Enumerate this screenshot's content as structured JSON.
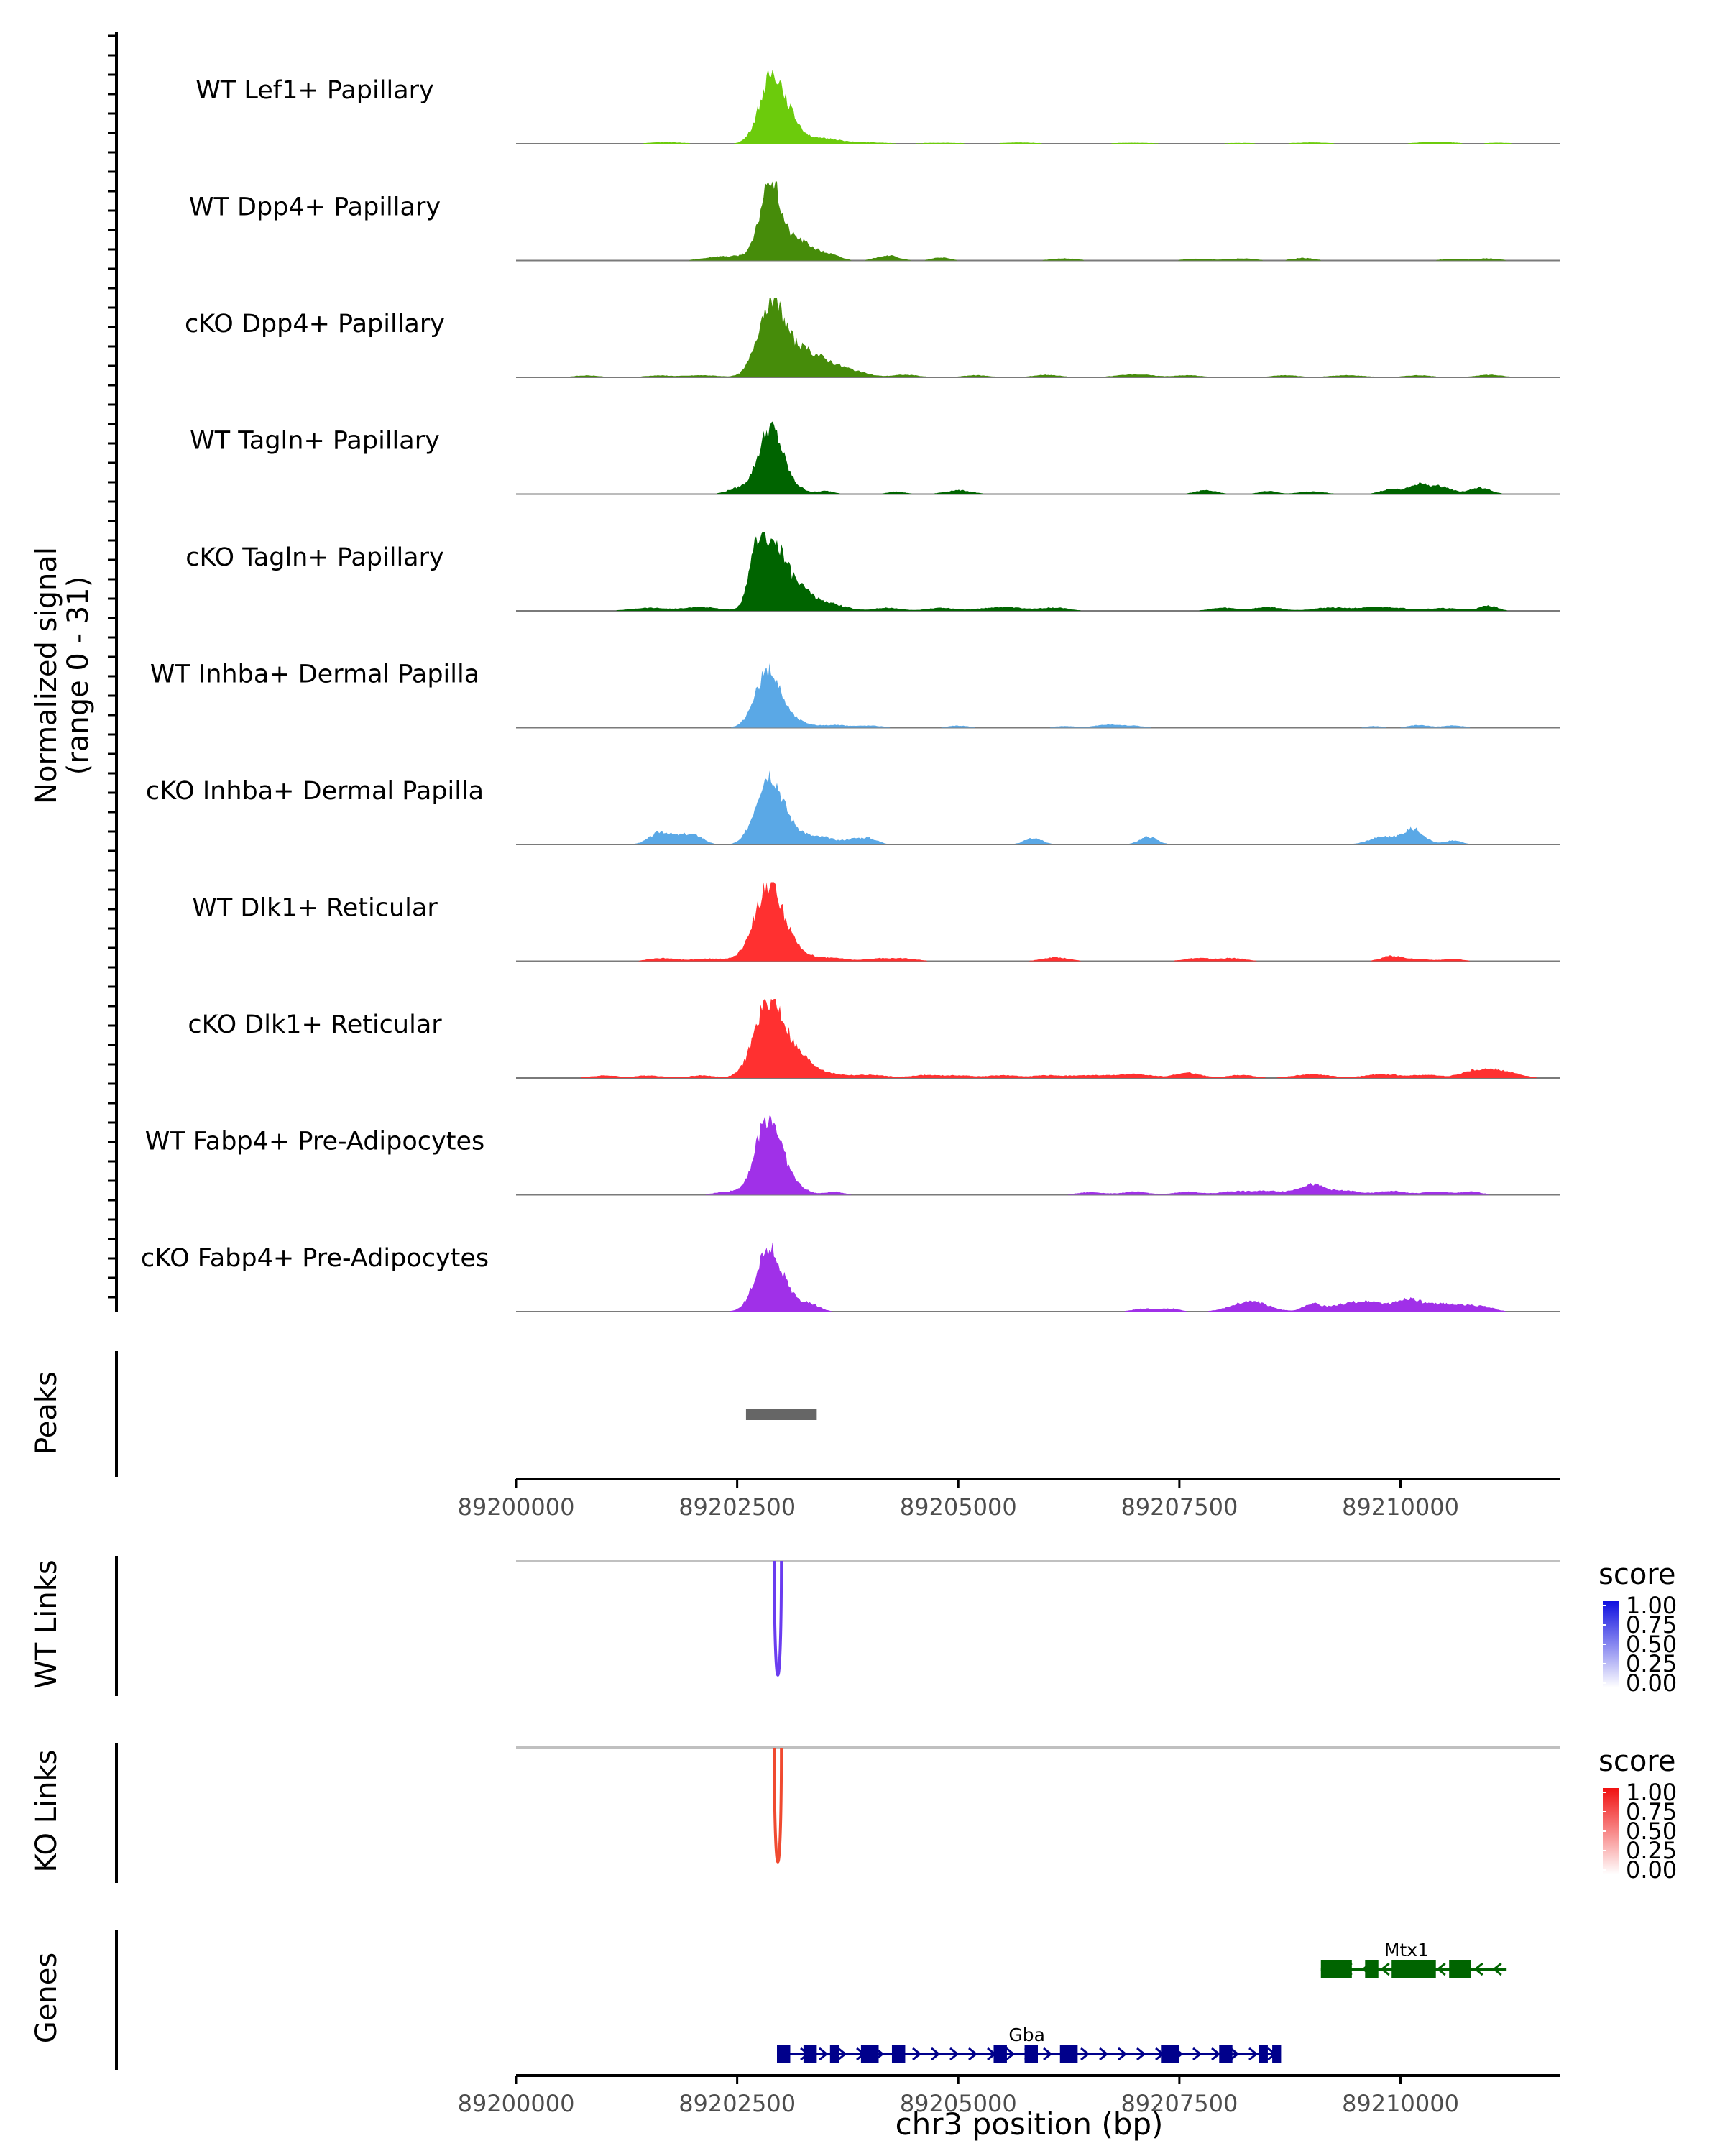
{
  "chart_data": {
    "type": "area",
    "title": "",
    "xlabel": "chr3 position (bp)",
    "ylabel": "Normalized signal",
    "ylabel2": "(range 0 - 31)",
    "xlim": [
      89200000,
      89211800
    ],
    "ylim": [
      0,
      31
    ],
    "x_ticks": [
      89200000,
      89202500,
      89205000,
      89207500,
      89210000
    ],
    "x_tick_labels": [
      "89200000",
      "89202500",
      "89205000",
      "89207500",
      "89210000"
    ],
    "coverage_tracks": [
      {
        "name": "WT Lef1+ Papillary",
        "color": "#6CCB0C",
        "peaks": [
          [
            89202900,
            27,
            140
          ],
          [
            89203150,
            5,
            120
          ],
          [
            89203500,
            2,
            180
          ],
          [
            89201700,
            0.6,
            200
          ],
          [
            89204000,
            0.5,
            200
          ],
          [
            89204800,
            0.4,
            250
          ],
          [
            89205700,
            0.5,
            200
          ],
          [
            89207000,
            0.4,
            250
          ],
          [
            89208200,
            0.3,
            250
          ],
          [
            89209000,
            0.5,
            200
          ],
          [
            89210400,
            0.8,
            200
          ],
          [
            89211100,
            0.4,
            150
          ]
        ]
      },
      {
        "name": "WT Dpp4+ Papillary",
        "color": "#468C0A",
        "peaks": [
          [
            89202870,
            24,
            100
          ],
          [
            89202950,
            9,
            220
          ],
          [
            89203250,
            4,
            150
          ],
          [
            89203550,
            2,
            120
          ],
          [
            89202300,
            1.5,
            180
          ],
          [
            89204200,
            2,
            120
          ],
          [
            89204800,
            1.2,
            100
          ],
          [
            89206200,
            0.8,
            150
          ],
          [
            89207700,
            0.7,
            150
          ],
          [
            89208200,
            0.8,
            150
          ],
          [
            89208900,
            1,
            120
          ],
          [
            89210600,
            0.6,
            150
          ],
          [
            89211000,
            0.8,
            120
          ]
        ]
      },
      {
        "name": "cKO Dpp4+ Papillary",
        "color": "#468C0A",
        "peaks": [
          [
            89202870,
            25,
            140
          ],
          [
            89203100,
            10,
            220
          ],
          [
            89203450,
            5,
            200
          ],
          [
            89203800,
            2,
            180
          ],
          [
            89200800,
            0.7,
            150
          ],
          [
            89201600,
            0.7,
            150
          ],
          [
            89202100,
            0.8,
            200
          ],
          [
            89204400,
            1,
            150
          ],
          [
            89205200,
            0.8,
            150
          ],
          [
            89206000,
            1,
            150
          ],
          [
            89207000,
            1.2,
            200
          ],
          [
            89207600,
            0.8,
            150
          ],
          [
            89208700,
            0.8,
            150
          ],
          [
            89209400,
            0.8,
            200
          ],
          [
            89210200,
            0.8,
            150
          ],
          [
            89211000,
            1,
            150
          ]
        ]
      },
      {
        "name": "WT Tagln+ Papillary",
        "color": "#006400",
        "peaks": [
          [
            89202880,
            26,
            140
          ],
          [
            89202500,
            2,
            120
          ],
          [
            89203200,
            1.5,
            100
          ],
          [
            89203500,
            1.2,
            100
          ],
          [
            89204300,
            1,
            100
          ],
          [
            89205000,
            1.5,
            150
          ],
          [
            89207800,
            1.5,
            120
          ],
          [
            89208500,
            1.2,
            100
          ],
          [
            89209000,
            1,
            150
          ],
          [
            89209900,
            2,
            120
          ],
          [
            89210200,
            3.5,
            100
          ],
          [
            89210450,
            3,
            130
          ],
          [
            89210900,
            2.5,
            120
          ]
        ]
      },
      {
        "name": "cKO Tagln+ Papillary",
        "color": "#006400",
        "peaks": [
          [
            89202750,
            28,
            100
          ],
          [
            89202950,
            18,
            100
          ],
          [
            89203150,
            10,
            150
          ],
          [
            89203500,
            3,
            200
          ],
          [
            89201500,
            1.2,
            200
          ],
          [
            89202100,
            1.5,
            200
          ],
          [
            89204200,
            1.2,
            150
          ],
          [
            89204800,
            1.2,
            150
          ],
          [
            89205500,
            1.5,
            250
          ],
          [
            89206100,
            1.2,
            150
          ],
          [
            89208000,
            1.2,
            150
          ],
          [
            89208500,
            1.5,
            150
          ],
          [
            89209200,
            1.2,
            200
          ],
          [
            89209800,
            1.5,
            250
          ],
          [
            89210500,
            1,
            200
          ],
          [
            89211000,
            2,
            100
          ]
        ]
      },
      {
        "name": "WT Inhba+ Dermal Papilla",
        "color": "#5AA8E6",
        "peaks": [
          [
            89202850,
            22,
            140
          ],
          [
            89203150,
            2.5,
            150
          ],
          [
            89203600,
            1,
            150
          ],
          [
            89204000,
            0.8,
            150
          ],
          [
            89205000,
            0.8,
            120
          ],
          [
            89206200,
            0.6,
            120
          ],
          [
            89206700,
            1.2,
            150
          ],
          [
            89207000,
            0.6,
            120
          ],
          [
            89209700,
            0.6,
            100
          ],
          [
            89210200,
            1,
            120
          ],
          [
            89210600,
            0.8,
            120
          ]
        ]
      },
      {
        "name": "cKO Inhba+ Dermal Papilla",
        "color": "#5AA8E6",
        "peaks": [
          [
            89202850,
            25,
            140
          ],
          [
            89203100,
            6,
            200
          ],
          [
            89201650,
            5,
            130
          ],
          [
            89201900,
            2.5,
            80
          ],
          [
            89202050,
            3,
            90
          ],
          [
            89203500,
            2,
            100
          ],
          [
            89203800,
            2,
            120
          ],
          [
            89204000,
            2,
            100
          ],
          [
            89205850,
            2.5,
            100
          ],
          [
            89207150,
            3,
            100
          ],
          [
            89209800,
            3,
            150
          ],
          [
            89210150,
            6,
            120
          ],
          [
            89210600,
            1.5,
            100
          ]
        ]
      },
      {
        "name": "WT Dlk1+ Reticular",
        "color": "#FF3030",
        "peaks": [
          [
            89202850,
            28,
            160
          ],
          [
            89203100,
            4,
            200
          ],
          [
            89201650,
            1.2,
            150
          ],
          [
            89202200,
            1,
            200
          ],
          [
            89203600,
            1.2,
            150
          ],
          [
            89204100,
            1,
            150
          ],
          [
            89204400,
            1,
            150
          ],
          [
            89206100,
            1.5,
            150
          ],
          [
            89207700,
            1.2,
            150
          ],
          [
            89208100,
            1.2,
            150
          ],
          [
            89209900,
            2,
            120
          ],
          [
            89210200,
            0.8,
            150
          ],
          [
            89210600,
            0.8,
            120
          ]
        ]
      },
      {
        "name": "cKO Dlk1+ Reticular",
        "color": "#FF3030",
        "peaks": [
          [
            89202850,
            26,
            160
          ],
          [
            89203050,
            8,
            200
          ],
          [
            89203300,
            3,
            150
          ],
          [
            89201000,
            1,
            150
          ],
          [
            89201500,
            1,
            150
          ],
          [
            89202100,
            1,
            150
          ],
          [
            89203600,
            1,
            150
          ],
          [
            89204000,
            1.2,
            200
          ],
          [
            89204600,
            1,
            150
          ],
          [
            89205000,
            1,
            200
          ],
          [
            89205500,
            1,
            150
          ],
          [
            89206000,
            1,
            200
          ],
          [
            89206500,
            1,
            200
          ],
          [
            89207000,
            1.5,
            200
          ],
          [
            89207600,
            2,
            150
          ],
          [
            89208200,
            1.2,
            150
          ],
          [
            89209000,
            1.5,
            200
          ],
          [
            89209800,
            1.5,
            200
          ],
          [
            89210300,
            1.2,
            150
          ],
          [
            89210800,
            2,
            150
          ],
          [
            89211100,
            3,
            200
          ]
        ]
      },
      {
        "name": "WT Fabp4+ Pre-Adipocytes",
        "color": "#A030E8",
        "peaks": [
          [
            89202850,
            30,
            140
          ],
          [
            89203100,
            4,
            150
          ],
          [
            89202400,
            1.2,
            150
          ],
          [
            89203600,
            1.2,
            100
          ],
          [
            89206500,
            1,
            150
          ],
          [
            89207000,
            1.2,
            150
          ],
          [
            89207600,
            1.2,
            150
          ],
          [
            89208100,
            1.2,
            150
          ],
          [
            89208500,
            1.5,
            200
          ],
          [
            89209000,
            4,
            150
          ],
          [
            89209400,
            1.5,
            150
          ],
          [
            89209900,
            1.5,
            150
          ],
          [
            89210400,
            1.2,
            150
          ],
          [
            89210800,
            1.2,
            120
          ]
        ]
      },
      {
        "name": "cKO Fabp4+ Pre-Adipocytes",
        "color": "#A030E8",
        "peaks": [
          [
            89202850,
            24,
            140
          ],
          [
            89203100,
            4,
            150
          ],
          [
            89203350,
            2,
            100
          ],
          [
            89207100,
            1.2,
            120
          ],
          [
            89207400,
            1.2,
            100
          ],
          [
            89208300,
            4,
            200
          ],
          [
            89209000,
            3,
            100
          ],
          [
            89209400,
            3,
            180
          ],
          [
            89209700,
            3,
            150
          ],
          [
            89210100,
            5,
            150
          ],
          [
            89210500,
            3,
            150
          ],
          [
            89210800,
            2,
            120
          ],
          [
            89211000,
            1.2,
            100
          ]
        ]
      }
    ],
    "peaks_track": {
      "label": "Peaks",
      "color": "#666666",
      "regions": [
        {
          "start": 89202600,
          "end": 89203400
        }
      ]
    },
    "links_tracks": [
      {
        "label": "WT Links",
        "color": "#6A3CF0",
        "links": [
          {
            "start": 89202920,
            "end": 89203000,
            "score": 0.85
          }
        ],
        "legend": {
          "title": "score",
          "color_high": "#1010E0",
          "color_low": "#FFFFFF",
          "labels": [
            "1.00",
            "0.75",
            "0.50",
            "0.25",
            "0.00"
          ]
        }
      },
      {
        "label": "KO Links",
        "color": "#F04A30",
        "links": [
          {
            "start": 89202920,
            "end": 89203000,
            "score": 0.85
          }
        ],
        "legend": {
          "title": "score",
          "color_high": "#F01010",
          "color_low": "#FFFFFF",
          "labels": [
            "1.00",
            "0.75",
            "0.50",
            "0.25",
            "0.00"
          ]
        }
      }
    ],
    "genes_track": {
      "label": "Genes",
      "genes": [
        {
          "name": "Mtx1",
          "start": 89209100,
          "end": 89211200,
          "strand": "-",
          "color": "#006400",
          "exons": [
            [
              89209100,
              89209450
            ],
            [
              89209600,
              89209750
            ],
            [
              89209900,
              89210400
            ],
            [
              89210550,
              89210800
            ]
          ]
        },
        {
          "name": "Gba",
          "start": 89202950,
          "end": 89208600,
          "strand": "+",
          "color": "#00008B",
          "exons": [
            [
              89202950,
              89203100
            ],
            [
              89203250,
              89203400
            ],
            [
              89203550,
              89203650
            ],
            [
              89203900,
              89204100
            ],
            [
              89204250,
              89204400
            ],
            [
              89205400,
              89205550
            ],
            [
              89205750,
              89205900
            ],
            [
              89206150,
              89206350
            ],
            [
              89207300,
              89207500
            ],
            [
              89207950,
              89208100
            ],
            [
              89208400,
              89208500
            ],
            [
              89208550,
              89208650
            ]
          ]
        }
      ]
    }
  }
}
